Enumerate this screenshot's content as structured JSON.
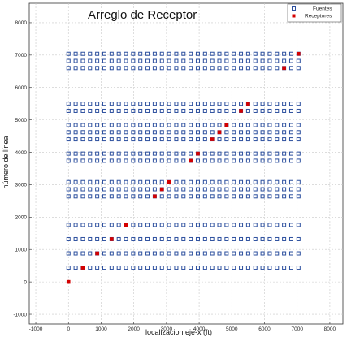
{
  "chart_data": {
    "type": "scatter",
    "title": "Arreglo de Receptor",
    "xlabel": "localizacion  eje-x (ft)",
    "ylabel": "número de línea",
    "xlim": [
      -1200,
      8400
    ],
    "ylim": [
      -1300,
      8600
    ],
    "xticks": [
      -1000,
      0,
      1000,
      2000,
      3000,
      4000,
      5000,
      6000,
      7000,
      8000
    ],
    "yticks": [
      -1000,
      0,
      1000,
      2000,
      3000,
      4000,
      5000,
      6000,
      7000,
      8000
    ],
    "grid": true,
    "legend_position": "top-right",
    "sources_x": {
      "start": 0,
      "end": 7040,
      "step": 220
    },
    "series": [
      {
        "name": "Fuentes",
        "marker": "open-square",
        "color": "#2c4f9e",
        "y_lines": [
          440,
          880,
          1320,
          1760,
          2640,
          2860,
          3080,
          3740,
          3960,
          4400,
          4620,
          4840,
          5280,
          5500,
          6600,
          6820,
          7040
        ]
      },
      {
        "name": "Receptores",
        "marker": "filled-square",
        "color": "#d40000",
        "points": [
          {
            "x": 0,
            "y": 0
          },
          {
            "x": 440,
            "y": 440
          },
          {
            "x": 880,
            "y": 880
          },
          {
            "x": 1320,
            "y": 1320
          },
          {
            "x": 1760,
            "y": 1760
          },
          {
            "x": 2640,
            "y": 2640
          },
          {
            "x": 2860,
            "y": 2860
          },
          {
            "x": 3080,
            "y": 3080
          },
          {
            "x": 3740,
            "y": 3740
          },
          {
            "x": 3960,
            "y": 3960
          },
          {
            "x": 4400,
            "y": 4400
          },
          {
            "x": 4620,
            "y": 4620
          },
          {
            "x": 4840,
            "y": 4840
          },
          {
            "x": 5280,
            "y": 5280
          },
          {
            "x": 5500,
            "y": 5500
          },
          {
            "x": 6600,
            "y": 6600
          },
          {
            "x": 7040,
            "y": 7040
          }
        ]
      }
    ]
  }
}
